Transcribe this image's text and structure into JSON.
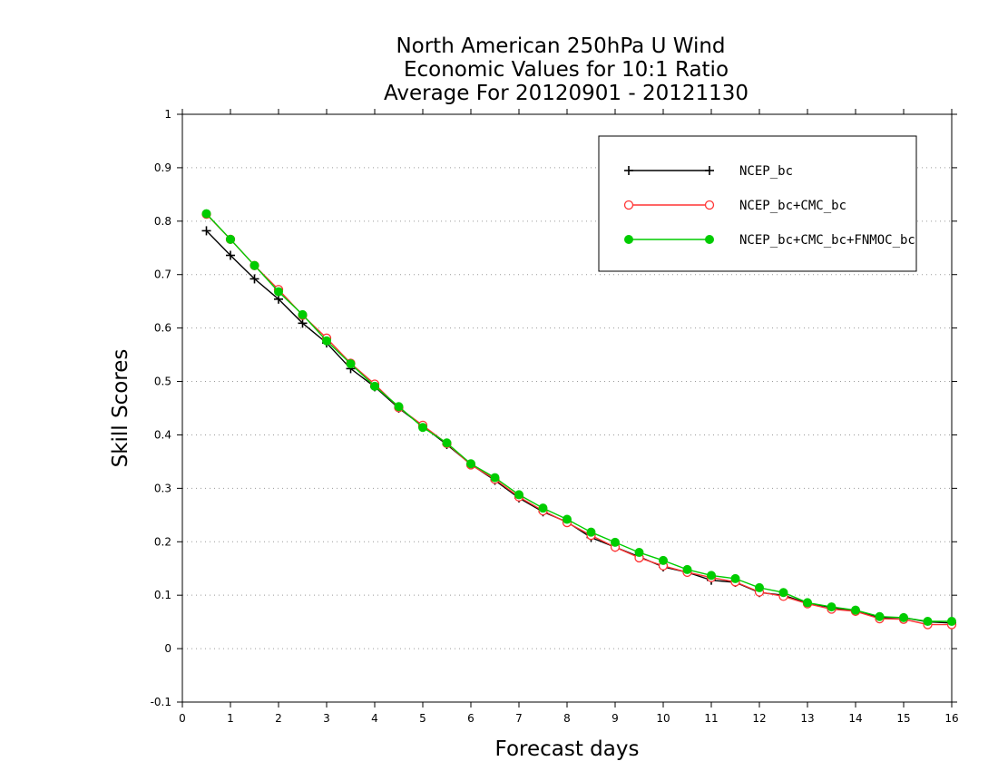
{
  "chart_data": {
    "type": "line",
    "title_lines": [
      "North American 250hPa U Wind",
      "Economic Values for 10:1 Ratio",
      "Average For 20120901 - 20121130"
    ],
    "xlabel": "Forecast days",
    "ylabel": "Skill Scores",
    "xlim": [
      0,
      16
    ],
    "ylim": [
      -0.1,
      1
    ],
    "xticks": [
      "0",
      "1",
      "2",
      "3",
      "4",
      "5",
      "6",
      "7",
      "8",
      "9",
      "10",
      "11",
      "12",
      "13",
      "14",
      "15",
      "16"
    ],
    "yticks": [
      "-0.1",
      "0",
      "0.1",
      "0.2",
      "0.3",
      "0.4",
      "0.5",
      "0.6",
      "0.7",
      "0.8",
      "0.9",
      "1"
    ],
    "grid": "horizontal dotted",
    "legend_position": "top-right",
    "x": [
      0.5,
      1,
      1.5,
      2,
      2.5,
      3,
      3.5,
      4,
      4.5,
      5,
      5.5,
      6,
      6.5,
      7,
      7.5,
      8,
      8.5,
      9,
      9.5,
      10,
      10.5,
      11,
      11.5,
      12,
      12.5,
      13,
      13.5,
      14,
      14.5,
      15,
      15.5,
      16
    ],
    "series": [
      {
        "name": "NCEP_bc",
        "color": "#000000",
        "marker": "plus",
        "values": [
          0.782,
          0.736,
          0.692,
          0.654,
          0.609,
          0.572,
          0.524,
          0.49,
          0.45,
          0.416,
          0.382,
          0.345,
          0.315,
          0.282,
          0.256,
          0.237,
          0.208,
          0.19,
          0.172,
          0.153,
          0.143,
          0.128,
          0.124,
          0.105,
          0.1,
          0.085,
          0.077,
          0.07,
          0.058,
          0.058,
          0.05,
          0.048
        ]
      },
      {
        "name": "NCEP_bc+CMC_bc",
        "color": "#ff3333",
        "marker": "open-circle",
        "values": [
          0.813,
          0.766,
          0.717,
          0.672,
          0.624,
          0.581,
          0.534,
          0.495,
          0.451,
          0.418,
          0.384,
          0.344,
          0.317,
          0.284,
          0.258,
          0.236,
          0.212,
          0.19,
          0.17,
          0.155,
          0.143,
          0.133,
          0.125,
          0.106,
          0.098,
          0.084,
          0.074,
          0.07,
          0.056,
          0.055,
          0.045,
          0.045
        ]
      },
      {
        "name": "NCEP_bc+CMC_bc+FNMOC_bc",
        "color": "#00cc00",
        "marker": "filled-circle",
        "values": [
          0.814,
          0.766,
          0.717,
          0.668,
          0.625,
          0.576,
          0.533,
          0.491,
          0.453,
          0.414,
          0.385,
          0.346,
          0.32,
          0.288,
          0.263,
          0.242,
          0.218,
          0.199,
          0.18,
          0.165,
          0.148,
          0.137,
          0.131,
          0.114,
          0.105,
          0.086,
          0.078,
          0.072,
          0.06,
          0.058,
          0.051,
          0.051
        ]
      }
    ]
  }
}
